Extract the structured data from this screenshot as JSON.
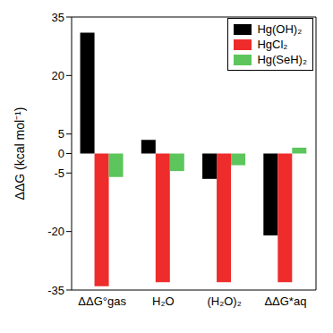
{
  "chart_data": {
    "type": "bar",
    "y_label": "ΔΔG (kcal mol⁻¹)",
    "categories": [
      "ΔΔG°gas",
      "H₂O",
      "(H₂O)₂",
      "ΔΔG*aq"
    ],
    "series": [
      {
        "name": "Hg(OH)₂",
        "color": "#000000",
        "values": [
          31,
          3.5,
          -6.5,
          -21
        ]
      },
      {
        "name": "HgCl₂",
        "color": "#ee2c2c",
        "values": [
          -34,
          -33,
          -33,
          -33
        ]
      },
      {
        "name": "Hg(SeH)₂",
        "color": "#5cc65c",
        "values": [
          -6,
          -4.5,
          -3,
          1.5
        ]
      }
    ],
    "ylim": [
      -35,
      35
    ],
    "yticks": [
      -35,
      -20,
      -5,
      0,
      5,
      20,
      35
    ],
    "legend": "upper right",
    "grid": false
  }
}
